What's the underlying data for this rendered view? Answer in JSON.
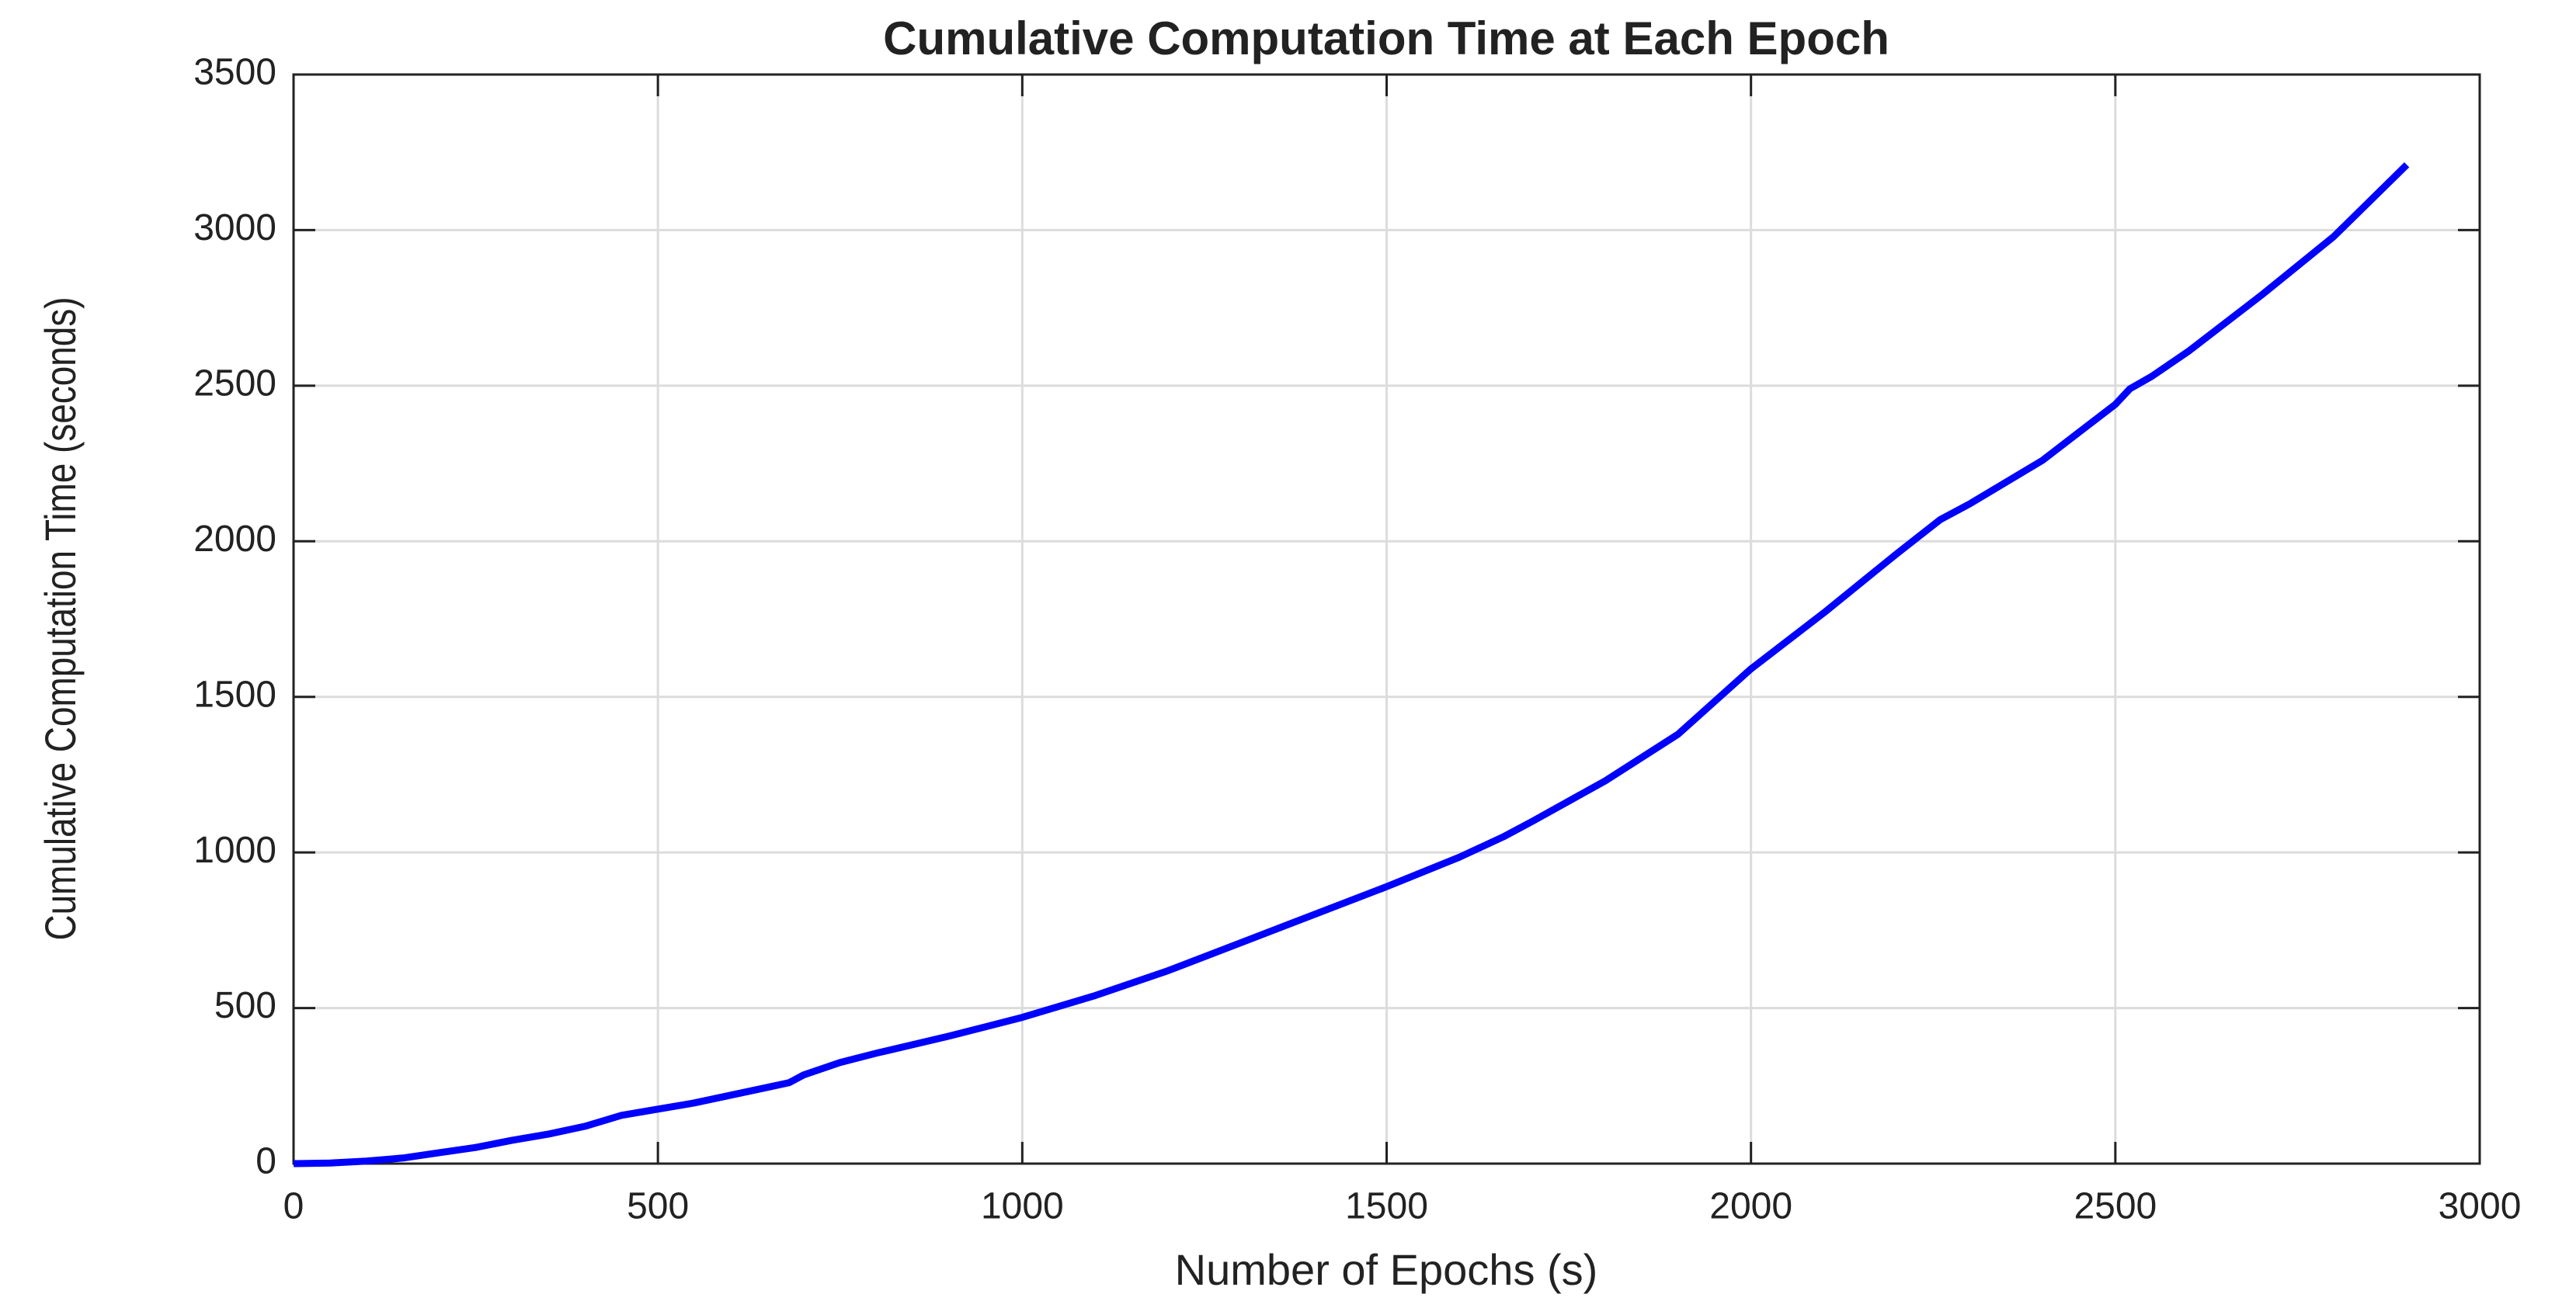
{
  "chart_data": {
    "type": "line",
    "title": "Cumulative Computation Time at Each Epoch",
    "xlabel": "Number of Epochs (s)",
    "ylabel": "Cumulative Computation Time (seconds)",
    "x": [
      0,
      50,
      100,
      150,
      200,
      250,
      300,
      350,
      400,
      450,
      500,
      550,
      600,
      650,
      680,
      700,
      750,
      800,
      900,
      1000,
      1100,
      1200,
      1300,
      1400,
      1500,
      1600,
      1660,
      1700,
      1800,
      1900,
      2000,
      2100,
      2200,
      2260,
      2300,
      2400,
      2500,
      2520,
      2550,
      2600,
      2700,
      2800,
      2900
    ],
    "series": [
      {
        "color": "#0000ff",
        "values": [
          0,
          2,
          8,
          18,
          35,
          52,
          75,
          95,
          120,
          155,
          175,
          195,
          220,
          245,
          260,
          285,
          325,
          355,
          410,
          470,
          540,
          620,
          710,
          800,
          890,
          985,
          1050,
          1100,
          1230,
          1380,
          1590,
          1770,
          1960,
          2070,
          2120,
          2260,
          2440,
          2490,
          2530,
          2610,
          2790,
          2980,
          3210
        ]
      }
    ],
    "xlim": [
      0,
      3000
    ],
    "xticks": [
      0,
      500,
      1000,
      1500,
      2000,
      2500,
      3000
    ],
    "ylim": [
      0,
      3500
    ],
    "yticks": [
      0,
      500,
      1000,
      1500,
      2000,
      2500,
      3000,
      3500
    ],
    "grid": true
  }
}
